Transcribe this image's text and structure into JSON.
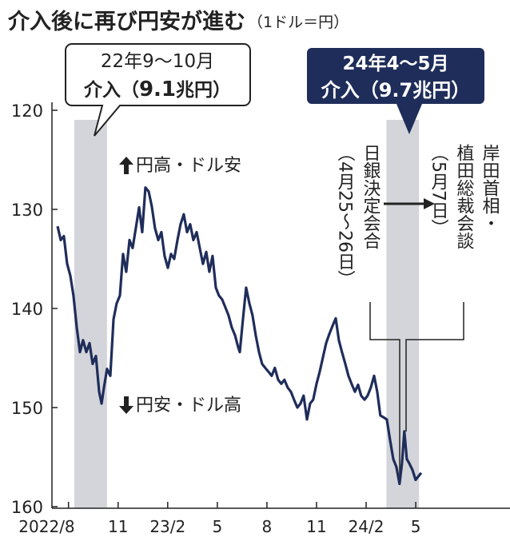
{
  "chart_data": {
    "type": "line",
    "title": "介入後に再び円安が進む",
    "unit_note": "（1ドル＝円）",
    "color": "#1f2d5a",
    "band_color": "#d3d5da",
    "xlim": [
      7,
      34.7
    ],
    "ylim": [
      160,
      120
    ],
    "yticks": [
      120,
      130,
      140,
      150,
      160
    ],
    "xticks": [
      {
        "value": 8,
        "label": "2022/8"
      },
      {
        "value": 11,
        "label": "11"
      },
      {
        "value": 14,
        "label": "23/2"
      },
      {
        "value": 17,
        "label": "5"
      },
      {
        "value": 20,
        "label": "8"
      },
      {
        "value": 23,
        "label": "11"
      },
      {
        "value": 26,
        "label": "24/2"
      },
      {
        "value": 29,
        "label": "5"
      }
    ],
    "shaded_ranges": [
      [
        8.35,
        10.33
      ],
      [
        27.23,
        29.2
      ]
    ],
    "x": [
      7.34,
      7.53,
      7.72,
      7.92,
      8.11,
      8.3,
      8.5,
      8.69,
      8.88,
      9.08,
      9.27,
      9.46,
      9.66,
      9.85,
      10.0,
      10.14,
      10.33,
      10.53,
      10.72,
      10.91,
      11.11,
      11.3,
      11.49,
      11.69,
      11.88,
      12.07,
      12.27,
      12.46,
      12.65,
      12.85,
      13.04,
      13.23,
      13.43,
      13.62,
      13.81,
      14.01,
      14.2,
      14.39,
      14.59,
      14.78,
      14.97,
      15.17,
      15.36,
      15.55,
      15.75,
      15.94,
      16.13,
      16.33,
      16.52,
      16.71,
      16.91,
      17.1,
      17.29,
      17.49,
      17.68,
      17.87,
      18.07,
      18.26,
      18.36,
      18.55,
      18.74,
      18.94,
      19.13,
      19.32,
      19.52,
      19.71,
      19.9,
      20.1,
      20.29,
      20.48,
      20.68,
      20.87,
      21.06,
      21.26,
      21.45,
      21.64,
      21.84,
      22.03,
      22.22,
      22.42,
      22.61,
      22.8,
      23.0,
      23.19,
      23.38,
      23.58,
      23.77,
      23.96,
      24.16,
      24.35,
      24.54,
      24.74,
      24.93,
      25.12,
      25.32,
      25.51,
      25.7,
      25.9,
      26.09,
      26.28,
      26.48,
      26.67,
      26.86,
      27.06,
      27.25,
      27.44,
      27.64,
      27.83,
      28.02,
      28.17,
      28.31,
      28.46,
      28.6,
      28.8,
      28.99,
      29.18,
      29.33
    ],
    "values": [
      131.7,
      133.1,
      132.7,
      135.5,
      136.7,
      138.7,
      141.9,
      144.4,
      143.2,
      144.4,
      143.5,
      145.6,
      144.8,
      148.4,
      149.6,
      148.0,
      146.1,
      146.8,
      141.1,
      139.5,
      138.7,
      134.5,
      136.3,
      133.1,
      133.9,
      131.9,
      129.8,
      132.3,
      127.8,
      128.2,
      129.7,
      131.9,
      133.1,
      132.3,
      134.7,
      135.9,
      134.5,
      135.0,
      133.1,
      131.5,
      130.5,
      132.3,
      131.5,
      133.1,
      132.3,
      133.9,
      135.5,
      134.3,
      136.3,
      134.7,
      137.9,
      138.7,
      139.1,
      139.9,
      140.7,
      141.9,
      142.7,
      143.9,
      144.4,
      141.1,
      137.9,
      139.5,
      140.7,
      142.7,
      144.4,
      145.6,
      146.0,
      146.4,
      146.8,
      146.0,
      147.2,
      147.6,
      147.2,
      148.0,
      148.4,
      149.2,
      150.0,
      149.6,
      148.8,
      151.2,
      149.6,
      149.2,
      147.6,
      146.4,
      145.0,
      143.5,
      142.6,
      141.8,
      141.0,
      143.2,
      144.4,
      145.6,
      146.8,
      147.6,
      148.4,
      147.7,
      148.8,
      149.2,
      148.8,
      148.0,
      146.8,
      148.4,
      150.8,
      151.0,
      151.2,
      153.2,
      155.2,
      156.0,
      157.7,
      155.6,
      152.4,
      155.2,
      155.6,
      156.3,
      157.3,
      156.9,
      156.6
    ],
    "callouts": [
      {
        "line1": "22年9～10月",
        "line2": [
          "介入（",
          "9.1",
          "兆円）"
        ]
      },
      {
        "line1": "24年4～5月",
        "line2": [
          "介入（",
          "9.7",
          "兆円）"
        ]
      }
    ],
    "direction_labels": [
      "円高・ドル安",
      "円安・ドル高"
    ],
    "events": [
      {
        "lines": [
          "日銀決定会合",
          "（4月25～26日）"
        ]
      },
      {
        "lines": [
          "岸田首相・",
          "植田総裁会談",
          "（5月7日）"
        ]
      }
    ]
  }
}
